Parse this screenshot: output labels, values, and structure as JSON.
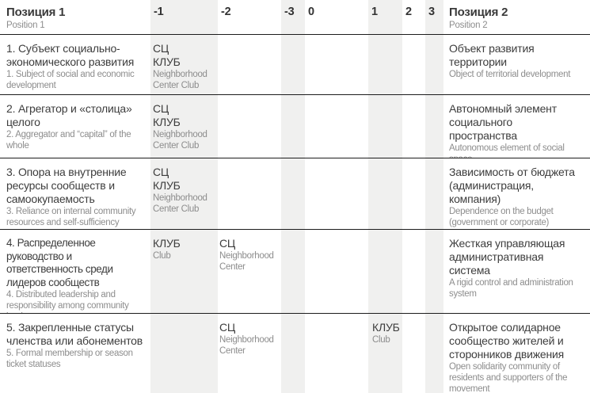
{
  "colors": {
    "background": "#ffffff",
    "column_band": "#f0f0ef",
    "text_dark": "#3d3d3d",
    "text_gray": "#8d8d8d",
    "separator_line": "#1c1c1c"
  },
  "header": {
    "position1_ru": "Позиция 1",
    "position1_en": "Position 1",
    "position2_ru": "Позиция 2",
    "position2_en": "Position 2",
    "scale": {
      "m1": "-1",
      "m2": "-2",
      "m3": "-3",
      "zero": "0",
      "p1": "1",
      "p2": "2",
      "p3": "3"
    }
  },
  "rows": [
    {
      "p1_ru": "1. Субъект социально-экономического развития",
      "p1_en": "1. Subject of social and economic development",
      "marks": {
        "m1": {
          "ru1": "СЦ",
          "ru2": "КЛУБ",
          "en": "Neighborhood Center Club"
        }
      },
      "p2_ru": "Объект развития территории",
      "p2_en": "Object of territorial development"
    },
    {
      "p1_ru": "2. Агрегатор и «столица» целого",
      "p1_en": "2. Aggregator and “capital” of the whole",
      "marks": {
        "m1": {
          "ru1": "СЦ",
          "ru2": "КЛУБ",
          "en": "Neighborhood Center Club"
        }
      },
      "p2_ru": "Автономный элемент социального пространства",
      "p2_en": "Autonomous element of social space"
    },
    {
      "p1_ru": "3. Опора на внутренние ресурсы сообществ и самоокупаемость",
      "p1_en": "3. Reliance on internal community resources and self-sufficiency",
      "marks": {
        "m1": {
          "ru1": "СЦ",
          "ru2": "КЛУБ",
          "en": "Neighborhood Center Club"
        }
      },
      "p2_ru": "Зависимость от бюджета (администрация, компания)",
      "p2_en": "Dependence on the budget (government or corporate)"
    },
    {
      "p1_ru": "4. Распределенное руководство и ответственность среди лидеров сообществ",
      "p1_en": "4. Distributed leadership and responsibility among community leaders",
      "marks": {
        "m1": {
          "ru1": "КЛУБ",
          "en": "Club"
        },
        "m2": {
          "ru1": "СЦ",
          "en": "Neighborhood Center"
        }
      },
      "p2_ru": "Жесткая управляющая административная система",
      "p2_en": "A rigid control and administration system"
    },
    {
      "p1_ru": "5. Закрепленные статусы членства или абонементов",
      "p1_en": "5. Formal membership or season ticket statuses",
      "marks": {
        "m2": {
          "ru1": "СЦ",
          "en": "Neighborhood Center"
        },
        "p1": {
          "ru1": "КЛУБ",
          "en": "Club"
        }
      },
      "p2_ru": "Открытое солидарное сообщество жителей и сторонников движения",
      "p2_en": "Open solidarity community of residents and supporters of the movement"
    }
  ]
}
